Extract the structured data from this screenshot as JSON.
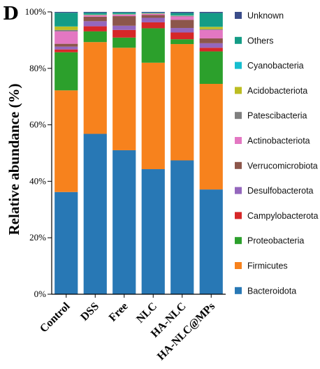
{
  "panel_label": "D",
  "chart_data": {
    "type": "bar",
    "stacked": true,
    "xlabel": "",
    "ylabel": "Relative abundance (%)",
    "ylim": [
      0,
      100
    ],
    "yticks": [
      "0%",
      "20%",
      "40%",
      "60%",
      "80%",
      "100%"
    ],
    "categories": [
      "Control",
      "DSS",
      "Free",
      "NLC",
      "HA-NLC",
      "HA-NLC@MPs"
    ],
    "legend_position": "right",
    "series": [
      {
        "name": "Bacteroidota",
        "color": "#2878b5",
        "values": [
          36.2,
          56.8,
          51.0,
          44.3,
          47.4,
          37.1
        ]
      },
      {
        "name": "Firmicutes",
        "color": "#f7821d",
        "values": [
          36.0,
          32.5,
          36.3,
          37.7,
          41.2,
          37.4
        ]
      },
      {
        "name": "Proteobacteria",
        "color": "#2ca02c",
        "values": [
          13.5,
          3.8,
          3.6,
          12.2,
          1.7,
          11.5
        ]
      },
      {
        "name": "Campylobacterota",
        "color": "#d62728",
        "values": [
          1.0,
          1.8,
          2.7,
          2.1,
          2.4,
          1.3
        ]
      },
      {
        "name": "Desulfobacterota",
        "color": "#9467bd",
        "values": [
          1.0,
          1.8,
          1.5,
          1.6,
          1.6,
          1.6
        ]
      },
      {
        "name": "Verrucomicrobiota",
        "color": "#8c564b",
        "values": [
          1.0,
          1.6,
          3.4,
          1.0,
          2.9,
          1.7
        ]
      },
      {
        "name": "Actinobacteriota",
        "color": "#e377c2",
        "values": [
          4.4,
          0.5,
          0.5,
          0.4,
          1.2,
          3.0
        ]
      },
      {
        "name": "Patescibacteria",
        "color": "#7f7f7f",
        "values": [
          0.5,
          0.1,
          0.1,
          0.1,
          0.2,
          0.3
        ]
      },
      {
        "name": "Acidobacteriota",
        "color": "#bcbd22",
        "values": [
          1.2,
          0.1,
          0.1,
          0.1,
          0.1,
          0.8
        ]
      },
      {
        "name": "Cyanobacteria",
        "color": "#17becf",
        "values": [
          0.1,
          0.1,
          0.1,
          0.1,
          0.1,
          0.1
        ]
      },
      {
        "name": "Others",
        "color": "#149c86",
        "values": [
          4.8,
          0.6,
          0.5,
          0.1,
          0.8,
          4.8
        ]
      },
      {
        "name": "Unknown",
        "color": "#3b4d8a",
        "values": [
          0.3,
          0.3,
          0.2,
          0.3,
          0.4,
          0.4
        ]
      }
    ]
  }
}
